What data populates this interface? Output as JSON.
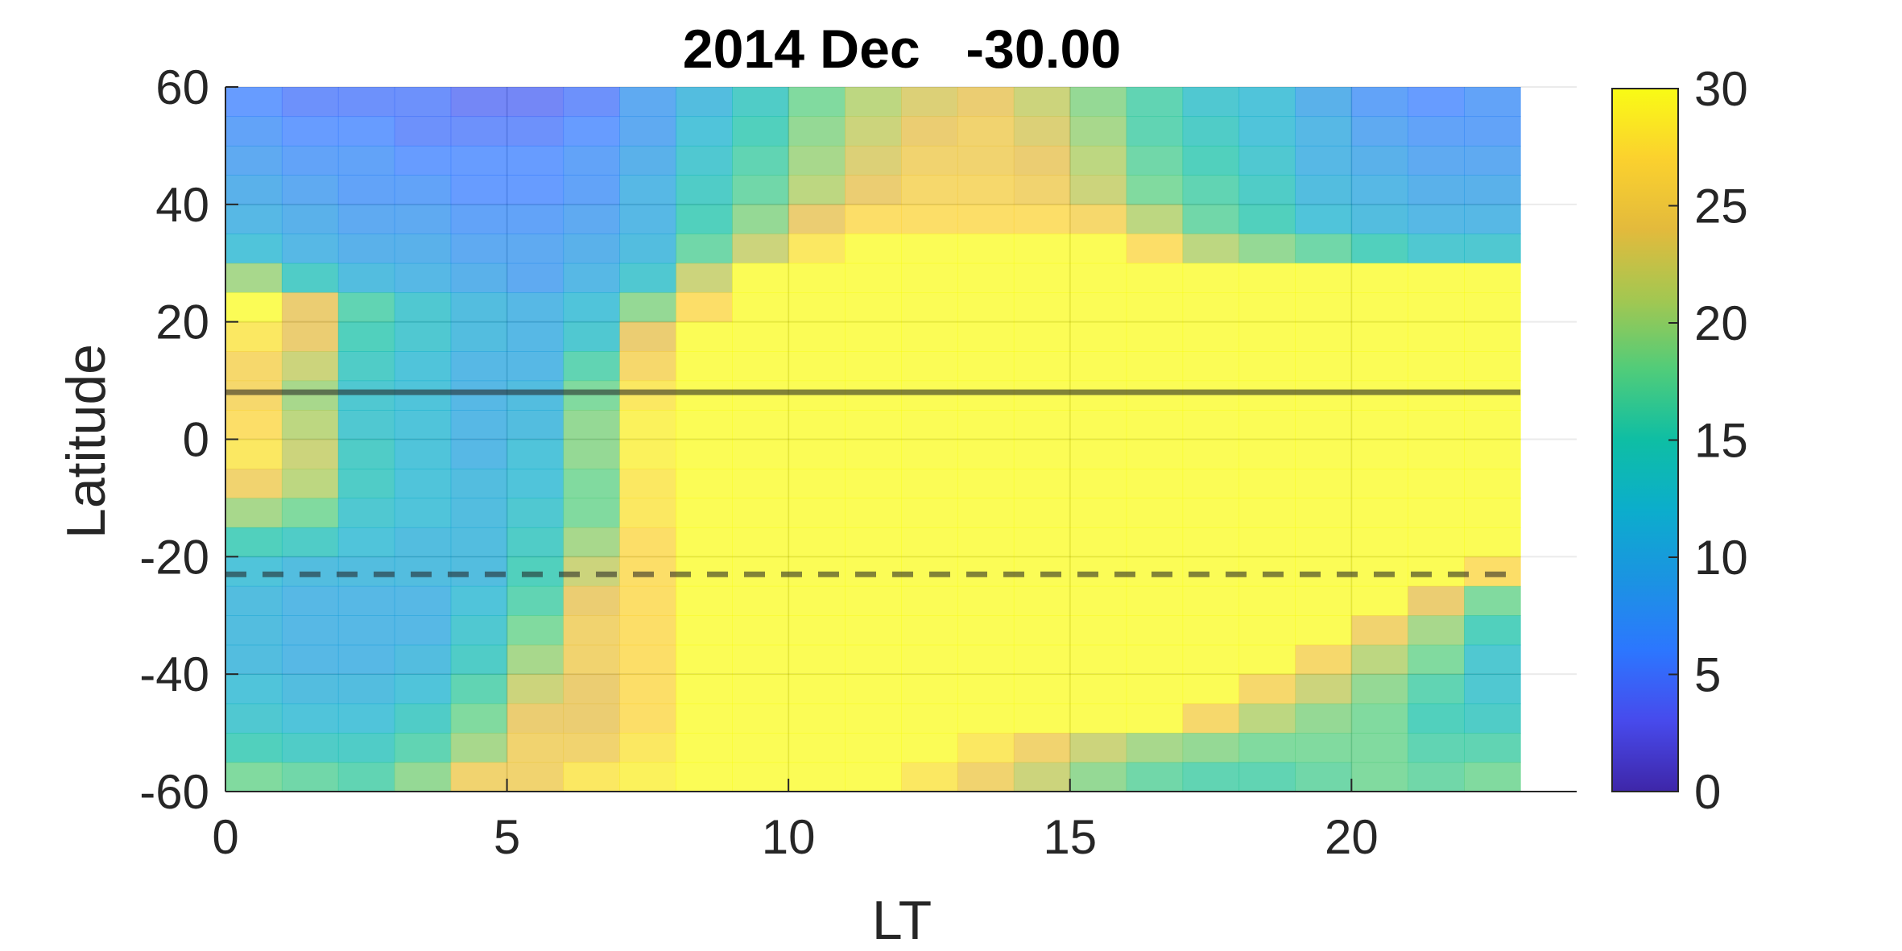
{
  "chart_data": {
    "type": "heatmap",
    "title": "2014 Dec   -30.00",
    "xlabel": "LT",
    "ylabel": "Latitude",
    "xlim": [
      0,
      24
    ],
    "ylim": [
      -60,
      60
    ],
    "grid": true,
    "x_ticks": [
      "0",
      "5",
      "10",
      "15",
      "20"
    ],
    "y_ticks": [
      "60",
      "40",
      "20",
      "0",
      "-20",
      "-40",
      "-60"
    ],
    "colorbar": {
      "limits": [
        0,
        30
      ],
      "ticks": [
        "30",
        "25",
        "20",
        "15",
        "10",
        "5",
        "0"
      ],
      "colormap": "parula"
    },
    "x": [
      0,
      1,
      2,
      3,
      4,
      5,
      6,
      7,
      8,
      9,
      10,
      11,
      12,
      13,
      14,
      15,
      16,
      17,
      18,
      19,
      20,
      21,
      22
    ],
    "y": [
      57.5,
      52.5,
      47.5,
      42.5,
      37.5,
      32.5,
      27.5,
      22.5,
      17.5,
      12.5,
      7.5,
      2.5,
      -2.5,
      -7.5,
      -12.5,
      -17.5,
      -22.5,
      -27.5,
      -32.5,
      -37.5,
      -42.5,
      -47.5,
      -52.5,
      -57.5
    ],
    "z": [
      [
        6,
        5,
        5,
        5,
        4,
        4,
        5,
        8,
        11,
        14,
        18,
        21,
        23,
        24,
        22,
        19,
        16,
        13,
        12,
        9,
        7,
        6,
        7
      ],
      [
        7,
        6,
        6,
        5,
        5,
        5,
        6,
        8,
        12,
        15,
        19,
        22,
        24,
        25,
        23,
        20,
        16,
        14,
        12,
        10,
        8,
        7,
        7
      ],
      [
        8,
        7,
        7,
        6,
        6,
        6,
        7,
        9,
        13,
        16,
        20,
        23,
        25,
        25,
        24,
        21,
        17,
        15,
        13,
        10,
        9,
        8,
        8
      ],
      [
        9,
        8,
        7,
        7,
        6,
        6,
        7,
        10,
        14,
        17,
        21,
        24,
        26,
        26,
        25,
        22,
        18,
        16,
        14,
        11,
        10,
        9,
        9
      ],
      [
        10,
        9,
        8,
        8,
        7,
        7,
        8,
        10,
        15,
        19,
        24,
        27,
        27,
        27,
        27,
        26,
        21,
        17,
        15,
        12,
        11,
        10,
        10
      ],
      [
        12,
        10,
        9,
        9,
        8,
        8,
        9,
        11,
        17,
        22,
        28,
        30,
        30,
        30,
        30,
        30,
        27,
        21,
        19,
        17,
        15,
        13,
        13
      ],
      [
        20,
        14,
        11,
        10,
        9,
        8,
        10,
        13,
        22,
        30,
        30,
        30,
        30,
        30,
        30,
        30,
        30,
        30,
        30,
        30,
        30,
        30,
        30
      ],
      [
        30,
        24,
        16,
        13,
        11,
        10,
        12,
        19,
        27,
        30,
        30,
        30,
        30,
        30,
        30,
        30,
        30,
        30,
        30,
        30,
        30,
        30,
        30
      ],
      [
        28,
        24,
        15,
        13,
        11,
        10,
        13,
        24,
        30,
        30,
        30,
        30,
        30,
        30,
        30,
        30,
        30,
        30,
        30,
        30,
        30,
        30,
        30
      ],
      [
        26,
        22,
        14,
        12,
        10,
        10,
        16,
        26,
        30,
        30,
        30,
        30,
        30,
        30,
        30,
        30,
        30,
        30,
        30,
        30,
        30,
        30,
        30
      ],
      [
        26,
        20,
        13,
        12,
        10,
        11,
        18,
        28,
        30,
        30,
        30,
        30,
        30,
        30,
        30,
        30,
        30,
        30,
        30,
        30,
        30,
        30,
        30
      ],
      [
        27,
        21,
        13,
        12,
        10,
        11,
        19,
        29,
        30,
        30,
        30,
        30,
        30,
        30,
        30,
        30,
        30,
        30,
        30,
        30,
        30,
        30,
        30
      ],
      [
        28,
        22,
        14,
        12,
        10,
        12,
        19,
        29,
        30,
        30,
        30,
        30,
        30,
        30,
        30,
        30,
        30,
        30,
        30,
        30,
        30,
        30,
        30
      ],
      [
        25,
        21,
        14,
        12,
        11,
        12,
        18,
        28,
        30,
        30,
        30,
        30,
        30,
        30,
        30,
        30,
        30,
        30,
        30,
        30,
        30,
        30,
        30
      ],
      [
        20,
        18,
        13,
        12,
        11,
        13,
        18,
        28,
        30,
        30,
        30,
        30,
        30,
        30,
        30,
        30,
        30,
        30,
        30,
        30,
        30,
        30,
        30
      ],
      [
        15,
        14,
        12,
        11,
        11,
        14,
        20,
        27,
        30,
        30,
        30,
        30,
        30,
        30,
        30,
        30,
        30,
        30,
        30,
        30,
        30,
        30,
        30
      ],
      [
        12,
        11,
        11,
        11,
        11,
        15,
        22,
        27,
        30,
        30,
        30,
        30,
        30,
        30,
        30,
        30,
        30,
        30,
        30,
        30,
        30,
        30,
        27
      ],
      [
        11,
        10,
        10,
        10,
        12,
        16,
        24,
        27,
        30,
        30,
        30,
        30,
        30,
        30,
        30,
        30,
        30,
        30,
        30,
        30,
        30,
        24,
        18
      ],
      [
        11,
        10,
        10,
        10,
        13,
        18,
        25,
        27,
        30,
        30,
        30,
        30,
        30,
        30,
        30,
        30,
        30,
        30,
        30,
        30,
        25,
        20,
        15
      ],
      [
        11,
        10,
        10,
        11,
        14,
        20,
        25,
        27,
        30,
        30,
        30,
        30,
        30,
        30,
        30,
        30,
        30,
        30,
        30,
        26,
        21,
        18,
        13
      ],
      [
        12,
        11,
        11,
        12,
        16,
        22,
        24,
        27,
        30,
        30,
        30,
        30,
        30,
        30,
        30,
        30,
        30,
        30,
        26,
        22,
        19,
        16,
        13
      ],
      [
        13,
        12,
        12,
        14,
        18,
        24,
        24,
        27,
        30,
        30,
        30,
        30,
        30,
        30,
        30,
        30,
        30,
        26,
        21,
        19,
        18,
        15,
        14
      ],
      [
        15,
        14,
        14,
        16,
        20,
        25,
        25,
        28,
        30,
        30,
        30,
        30,
        30,
        28,
        25,
        22,
        20,
        19,
        18,
        18,
        18,
        16,
        16
      ],
      [
        18,
        17,
        16,
        19,
        25,
        25,
        28,
        29,
        30,
        30,
        30,
        30,
        28,
        25,
        22,
        19,
        17,
        16,
        16,
        17,
        18,
        17,
        18
      ]
    ],
    "overlay_lines": [
      {
        "style": "solid",
        "y": 8,
        "x_range": [
          0,
          23
        ]
      },
      {
        "style": "dashed",
        "y": -23,
        "x_range": [
          0,
          23
        ]
      }
    ]
  }
}
